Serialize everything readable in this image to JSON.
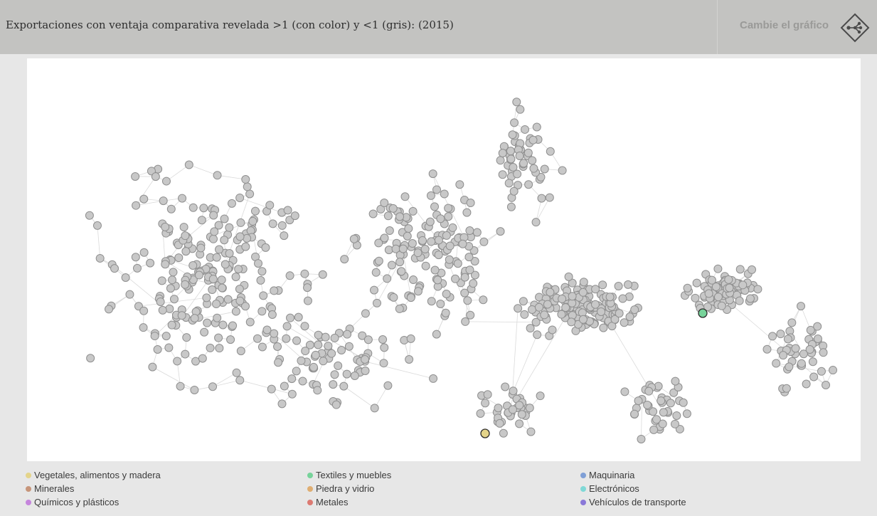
{
  "header": {
    "title": "Exportaciones con ventaja comparativa revelada >1 (con color) y <1 (gris): (2015)",
    "change_chart_label": "Cambie el gráfico",
    "change_chart_icon": "network-diamond-icon"
  },
  "network": {
    "node_fill_gray": "#c8c8c8",
    "node_stroke_gray": "#8f8f8f",
    "edge_color": "#dadada",
    "highlighted_nodes": [
      {
        "category": "Textiles y muebles",
        "color": "#77d39a"
      },
      {
        "category": "Vegetales, alimentos y madera",
        "color": "#e4d48a"
      }
    ]
  },
  "legend": [
    {
      "label": "Vegetales, alimentos y madera",
      "color": "#e4d48a"
    },
    {
      "label": "Textiles y muebles",
      "color": "#77d39a"
    },
    {
      "label": "Maquinaria",
      "color": "#7f9fd6"
    },
    {
      "label": "Minerales",
      "color": "#c7957a"
    },
    {
      "label": "Piedra y vidrio",
      "color": "#dfae72"
    },
    {
      "label": "Electrónicos",
      "color": "#7fd8d6"
    },
    {
      "label": "Químicos y plásticos",
      "color": "#c585dc"
    },
    {
      "label": "Metales",
      "color": "#dc7a72"
    },
    {
      "label": "Vehículos de transporte",
      "color": "#8a78d8"
    }
  ]
}
